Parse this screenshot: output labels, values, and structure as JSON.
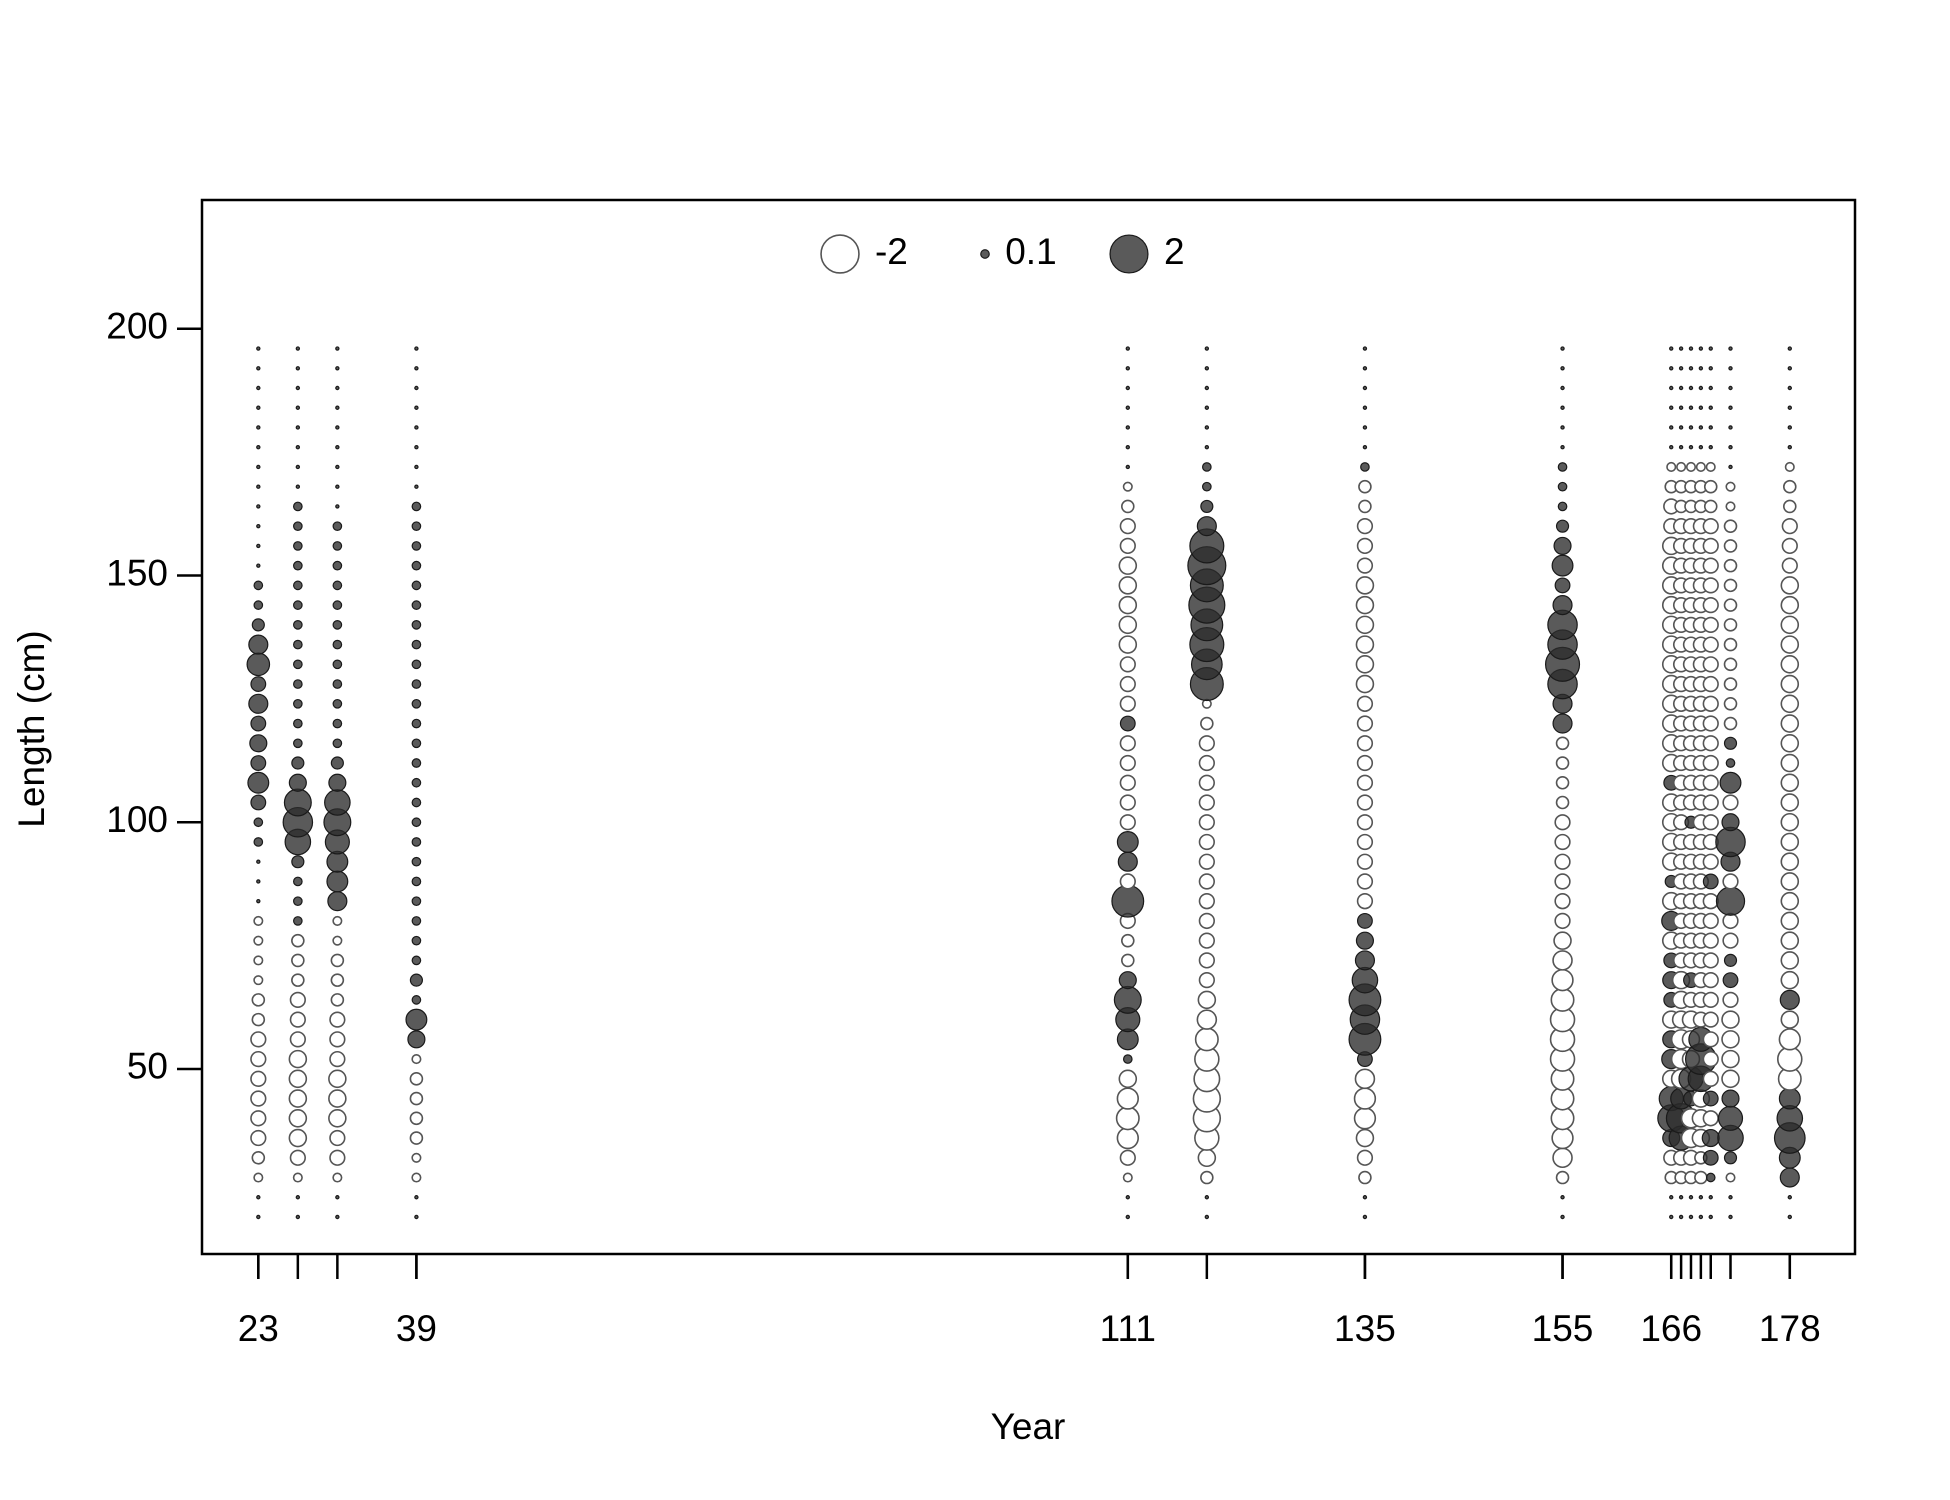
{
  "chart_data": {
    "type": "bubble",
    "xlabel": "Year",
    "ylabel": "Length (cm)",
    "xlim": [
      17.3,
      184.6
    ],
    "ylim": [
      12.5,
      226.1
    ],
    "xticks": [
      23,
      39,
      111,
      135,
      155,
      166,
      178
    ],
    "yticks": [
      50,
      100,
      150,
      200
    ],
    "legend": {
      "position": "top",
      "values": [
        -2,
        0.1,
        2
      ]
    },
    "positive_color": "#2b2b2b",
    "negative_color": "#ffffff",
    "lengths": [
      20,
      24,
      28,
      32,
      36,
      40,
      44,
      48,
      52,
      56,
      60,
      64,
      68,
      72,
      76,
      80,
      84,
      88,
      92,
      96,
      100,
      104,
      108,
      112,
      116,
      120,
      124,
      128,
      132,
      136,
      140,
      144,
      148,
      152,
      156,
      160,
      164,
      168,
      172,
      176,
      180,
      184,
      188,
      192,
      196
    ],
    "series": [
      {
        "x": 23,
        "values": [
          0,
          0,
          -0.1,
          -0.2,
          -0.3,
          -0.3,
          -0.3,
          -0.3,
          -0.3,
          -0.3,
          -0.2,
          -0.2,
          -0.1,
          -0.1,
          -0.1,
          -0.1,
          0,
          0,
          0,
          0.1,
          0.1,
          0.3,
          0.6,
          0.3,
          0.4,
          0.3,
          0.5,
          0.3,
          0.7,
          0.5,
          0.2,
          0.1,
          0.1,
          0,
          0,
          0,
          0,
          0,
          0,
          0,
          0,
          0,
          0,
          0,
          0
        ]
      },
      {
        "x": 27,
        "values": [
          0,
          0,
          -0.1,
          -0.3,
          -0.4,
          -0.4,
          -0.4,
          -0.4,
          -0.4,
          -0.3,
          -0.3,
          -0.3,
          -0.2,
          -0.2,
          -0.2,
          0.1,
          0.1,
          0.1,
          0.2,
          0.9,
          1.2,
          1,
          0.4,
          0.2,
          0.1,
          0.1,
          0.1,
          0.1,
          0.1,
          0.1,
          0.1,
          0.1,
          0.1,
          0.1,
          0.1,
          0.1,
          0.1,
          0,
          0,
          0,
          0,
          0,
          0,
          0,
          0
        ]
      },
      {
        "x": 31,
        "values": [
          0,
          0,
          -0.1,
          -0.3,
          -0.3,
          -0.4,
          -0.4,
          -0.4,
          -0.3,
          -0.3,
          -0.3,
          -0.2,
          -0.2,
          -0.2,
          -0.1,
          -0.1,
          0.5,
          0.6,
          0.6,
          0.8,
          1,
          0.9,
          0.4,
          0.2,
          0.1,
          0.1,
          0.1,
          0.1,
          0.1,
          0.1,
          0.1,
          0.1,
          0.1,
          0.1,
          0.1,
          0.1,
          0,
          0,
          0,
          0,
          0,
          0,
          0,
          0,
          0
        ]
      },
      {
        "x": 39,
        "values": [
          0,
          0,
          -0.1,
          -0.1,
          -0.2,
          -0.2,
          -0.2,
          -0.2,
          -0.1,
          0.4,
          0.6,
          0.1,
          0.2,
          0.1,
          0.1,
          0.1,
          0.1,
          0.1,
          0.1,
          0.1,
          0.1,
          0.1,
          0.1,
          0.1,
          0.1,
          0.1,
          0.1,
          0.1,
          0.1,
          0.1,
          0.1,
          0.1,
          0.1,
          0.1,
          0.1,
          0.1,
          0.1,
          0,
          0,
          0,
          0,
          0,
          0,
          0,
          0
        ]
      },
      {
        "x": 111,
        "values": [
          0,
          0,
          -0.1,
          -0.3,
          -0.6,
          -0.7,
          -0.6,
          -0.4,
          0.1,
          0.6,
          0.8,
          1,
          0.4,
          -0.2,
          -0.2,
          -0.3,
          1.4,
          -0.3,
          0.5,
          0.6,
          -0.3,
          -0.3,
          -0.3,
          -0.3,
          -0.3,
          0.3,
          -0.3,
          -0.3,
          -0.3,
          -0.4,
          -0.4,
          -0.4,
          -0.4,
          -0.4,
          -0.3,
          -0.3,
          -0.2,
          -0.1,
          0,
          0,
          0,
          0,
          0,
          0,
          0
        ]
      },
      {
        "x": 119,
        "values": [
          0,
          0,
          -0.2,
          -0.4,
          -0.8,
          -1,
          -1,
          -0.9,
          -0.8,
          -0.7,
          -0.5,
          -0.4,
          -0.3,
          -0.3,
          -0.3,
          -0.3,
          -0.3,
          -0.3,
          -0.3,
          -0.3,
          -0.3,
          -0.3,
          -0.3,
          -0.3,
          -0.3,
          -0.2,
          -0.1,
          1.5,
          1.3,
          1.6,
          1.4,
          1.8,
          1.5,
          2,
          1.6,
          0.5,
          0.2,
          0.1,
          0.1,
          0,
          0,
          0,
          0,
          0,
          0
        ]
      },
      {
        "x": 135,
        "values": [
          0,
          0,
          -0.2,
          -0.3,
          -0.4,
          -0.6,
          -0.6,
          -0.5,
          0.3,
          1.4,
          1.2,
          1.4,
          0.9,
          0.5,
          0.4,
          0.3,
          -0.3,
          -0.3,
          -0.3,
          -0.3,
          -0.3,
          -0.3,
          -0.3,
          -0.3,
          -0.3,
          -0.3,
          -0.3,
          -0.4,
          -0.4,
          -0.4,
          -0.4,
          -0.4,
          -0.4,
          -0.3,
          -0.3,
          -0.3,
          -0.2,
          -0.2,
          0.1,
          0,
          0,
          0,
          0,
          0,
          0
        ]
      },
      {
        "x": 155,
        "values": [
          0,
          0,
          -0.2,
          -0.5,
          -0.6,
          -0.7,
          -0.7,
          -0.7,
          -0.8,
          -0.8,
          -0.8,
          -0.7,
          -0.6,
          -0.5,
          -0.4,
          -0.3,
          -0.3,
          -0.3,
          -0.3,
          -0.3,
          -0.3,
          -0.2,
          -0.2,
          -0.2,
          -0.2,
          0.5,
          0.5,
          1.2,
          1.6,
          1.2,
          1.2,
          0.5,
          0.3,
          0.6,
          0.4,
          0.2,
          0.1,
          0.1,
          0.1,
          0,
          0,
          0,
          0,
          0,
          0
        ]
      },
      {
        "x": 166,
        "values": [
          0,
          0,
          -0.2,
          -0.3,
          0.4,
          1,
          0.8,
          -0.4,
          0.5,
          0.4,
          -0.4,
          0.3,
          0.4,
          0.3,
          -0.4,
          0.5,
          -0.4,
          0.2,
          -0.4,
          -0.4,
          -0.4,
          -0.4,
          0.3,
          -0.4,
          -0.4,
          -0.4,
          -0.4,
          -0.4,
          -0.4,
          -0.4,
          -0.4,
          -0.4,
          -0.4,
          -0.4,
          -0.4,
          -0.3,
          -0.3,
          -0.2,
          -0.1,
          0,
          0,
          0,
          0,
          0,
          0
        ]
      },
      {
        "x": 167,
        "values": [
          0,
          0,
          -0.2,
          -0.3,
          0.8,
          1.2,
          0.6,
          -0.5,
          -0.5,
          -0.5,
          -0.4,
          -0.4,
          -0.4,
          -0.3,
          -0.3,
          -0.3,
          -0.3,
          -0.3,
          -0.3,
          -0.3,
          -0.3,
          -0.3,
          -0.3,
          -0.3,
          -0.3,
          -0.3,
          -0.3,
          -0.3,
          -0.3,
          -0.3,
          -0.3,
          -0.3,
          -0.3,
          -0.3,
          -0.3,
          -0.3,
          -0.2,
          -0.2,
          -0.1,
          0,
          0,
          0,
          0,
          0,
          0
        ]
      },
      {
        "x": 168,
        "values": [
          0,
          0,
          -0.2,
          -0.3,
          -0.5,
          -0.5,
          0.3,
          0.8,
          -0.4,
          -0.4,
          -0.4,
          -0.3,
          0.3,
          -0.3,
          -0.3,
          -0.3,
          -0.3,
          -0.3,
          -0.3,
          -0.3,
          0.2,
          -0.3,
          -0.3,
          -0.3,
          -0.3,
          -0.3,
          -0.3,
          -0.3,
          -0.3,
          -0.3,
          -0.3,
          -0.3,
          -0.3,
          -0.3,
          -0.3,
          -0.3,
          -0.2,
          -0.2,
          -0.1,
          0,
          0,
          0,
          0,
          0,
          0
        ]
      },
      {
        "x": 169,
        "values": [
          0,
          0,
          -0.2,
          -0.2,
          -0.4,
          -0.4,
          -0.4,
          0.9,
          1.3,
          0.8,
          -0.3,
          -0.3,
          -0.3,
          -0.3,
          -0.3,
          -0.3,
          -0.3,
          -0.3,
          -0.3,
          -0.3,
          -0.3,
          -0.3,
          -0.3,
          -0.3,
          -0.3,
          -0.3,
          -0.3,
          -0.3,
          -0.3,
          -0.3,
          -0.3,
          -0.3,
          -0.3,
          -0.3,
          -0.3,
          -0.3,
          -0.2,
          -0.2,
          -0.1,
          0,
          0,
          0,
          0,
          0,
          0
        ]
      },
      {
        "x": 170,
        "values": [
          0,
          0,
          0.1,
          0.3,
          0.4,
          -0.3,
          0.3,
          -0.3,
          -0.3,
          -0.3,
          -0.3,
          -0.3,
          -0.3,
          -0.3,
          -0.3,
          -0.3,
          -0.3,
          0.3,
          -0.3,
          -0.3,
          -0.3,
          -0.3,
          -0.3,
          -0.3,
          -0.3,
          -0.3,
          -0.3,
          -0.3,
          -0.3,
          -0.3,
          -0.3,
          -0.3,
          -0.3,
          -0.3,
          -0.3,
          -0.3,
          -0.2,
          -0.2,
          -0.1,
          0,
          0,
          0,
          0,
          0,
          0
        ]
      },
      {
        "x": 172,
        "values": [
          0,
          0,
          -0.1,
          0.2,
          0.9,
          0.8,
          0.4,
          -0.4,
          -0.4,
          -0.4,
          -0.4,
          -0.3,
          0.3,
          0.2,
          -0.3,
          -0.3,
          1.1,
          -0.3,
          0.5,
          1.2,
          0.4,
          -0.3,
          0.6,
          0.1,
          0.2,
          -0.2,
          -0.2,
          -0.2,
          -0.2,
          -0.2,
          -0.2,
          -0.2,
          -0.2,
          -0.2,
          -0.2,
          -0.2,
          -0.1,
          -0.1,
          0,
          0,
          0,
          0,
          0,
          0,
          0
        ]
      },
      {
        "x": 178,
        "values": [
          0,
          0,
          0.5,
          0.6,
          1.3,
          0.9,
          0.6,
          -0.7,
          -0.8,
          -0.6,
          -0.4,
          0.5,
          -0.4,
          -0.4,
          -0.4,
          -0.4,
          -0.4,
          -0.4,
          -0.4,
          -0.4,
          -0.4,
          -0.4,
          -0.4,
          -0.4,
          -0.4,
          -0.4,
          -0.4,
          -0.4,
          -0.4,
          -0.4,
          -0.4,
          -0.4,
          -0.4,
          -0.3,
          -0.3,
          -0.3,
          -0.2,
          -0.2,
          -0.1,
          0,
          0,
          0,
          0,
          0,
          0
        ]
      }
    ]
  }
}
